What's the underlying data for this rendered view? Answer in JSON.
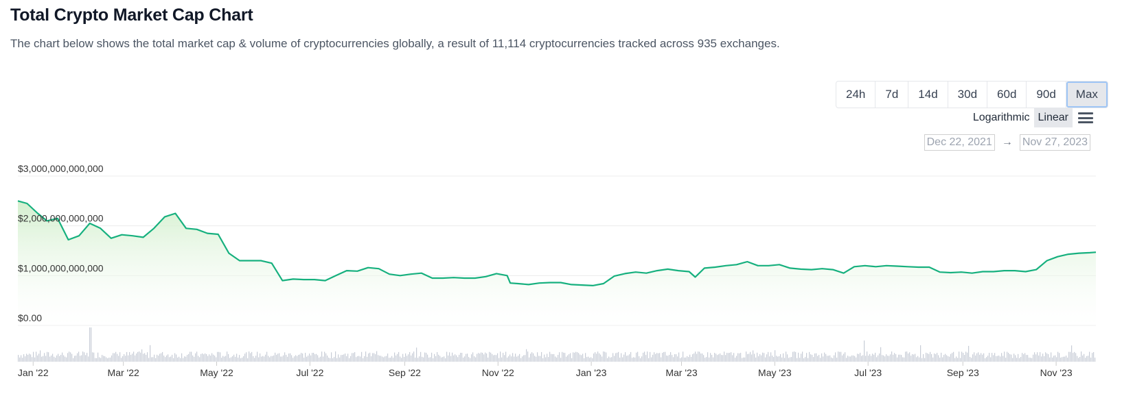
{
  "header": {
    "title": "Total Crypto Market Cap Chart",
    "subtitle": "The chart below shows the total market cap & volume of cryptocurrencies globally, a result of 11,114 cryptocurrencies tracked across 935 exchanges."
  },
  "controls": {
    "ranges": [
      "24h",
      "7d",
      "14d",
      "30d",
      "60d",
      "90d",
      "Max"
    ],
    "active_range": "Max",
    "scale_options": [
      "Logarithmic",
      "Linear"
    ],
    "active_scale": "Linear",
    "menu_icon": "hamburger-menu-icon",
    "date_from": "Dec 22, 2021",
    "date_arrow": "→",
    "date_to": "Nov 27, 2023"
  },
  "chart_data": {
    "type": "area",
    "title": "Total Crypto Market Cap Chart",
    "x_start": "2021-12-22",
    "x_end": "2023-11-27",
    "x_tick_labels": [
      "Jan '22",
      "Mar '22",
      "May '22",
      "Jul '22",
      "Sep '22",
      "Nov '22",
      "Jan '23",
      "Mar '23",
      "May '23",
      "Jul '23",
      "Sep '23",
      "Nov '23"
    ],
    "x_tick_dates": [
      "2022-01-01",
      "2022-03-01",
      "2022-05-01",
      "2022-07-01",
      "2022-09-01",
      "2022-11-01",
      "2023-01-01",
      "2023-03-01",
      "2023-05-01",
      "2023-07-01",
      "2023-09-01",
      "2023-11-01"
    ],
    "y_tick_labels": [
      "$0.00",
      "$1,000,000,000,000",
      "$2,000,000,000,000",
      "$3,000,000,000,000"
    ],
    "y_tick_values": [
      0,
      1000000000000,
      2000000000000,
      3000000000000
    ],
    "ylim": [
      0,
      3000000000000
    ],
    "grid": true,
    "line_color": "#16b07e",
    "fill_color": "#d7f2d7",
    "series": [
      {
        "name": "Market Cap",
        "points": [
          [
            "2021-12-22",
            2500000000000.0
          ],
          [
            "2021-12-28",
            2450000000000.0
          ],
          [
            "2022-01-04",
            2250000000000.0
          ],
          [
            "2022-01-10",
            2100000000000.0
          ],
          [
            "2022-01-17",
            2150000000000.0
          ],
          [
            "2022-01-24",
            1720000000000.0
          ],
          [
            "2022-01-31",
            1800000000000.0
          ],
          [
            "2022-02-07",
            2050000000000.0
          ],
          [
            "2022-02-14",
            1950000000000.0
          ],
          [
            "2022-02-21",
            1750000000000.0
          ],
          [
            "2022-02-28",
            1820000000000.0
          ],
          [
            "2022-03-07",
            1800000000000.0
          ],
          [
            "2022-03-14",
            1770000000000.0
          ],
          [
            "2022-03-21",
            1950000000000.0
          ],
          [
            "2022-03-28",
            2180000000000.0
          ],
          [
            "2022-04-04",
            2250000000000.0
          ],
          [
            "2022-04-11",
            1950000000000.0
          ],
          [
            "2022-04-18",
            1930000000000.0
          ],
          [
            "2022-04-25",
            1850000000000.0
          ],
          [
            "2022-05-02",
            1830000000000.0
          ],
          [
            "2022-05-09",
            1450000000000.0
          ],
          [
            "2022-05-16",
            1300000000000.0
          ],
          [
            "2022-05-23",
            1300000000000.0
          ],
          [
            "2022-05-30",
            1300000000000.0
          ],
          [
            "2022-06-06",
            1250000000000.0
          ],
          [
            "2022-06-13",
            900000000000.0
          ],
          [
            "2022-06-20",
            930000000000.0
          ],
          [
            "2022-06-27",
            920000000000.0
          ],
          [
            "2022-07-04",
            920000000000.0
          ],
          [
            "2022-07-11",
            900000000000.0
          ],
          [
            "2022-07-18",
            1000000000000.0
          ],
          [
            "2022-07-25",
            1100000000000.0
          ],
          [
            "2022-08-01",
            1090000000000.0
          ],
          [
            "2022-08-08",
            1160000000000.0
          ],
          [
            "2022-08-15",
            1140000000000.0
          ],
          [
            "2022-08-22",
            1030000000000.0
          ],
          [
            "2022-08-29",
            1000000000000.0
          ],
          [
            "2022-09-05",
            1030000000000.0
          ],
          [
            "2022-09-12",
            1050000000000.0
          ],
          [
            "2022-09-19",
            950000000000.0
          ],
          [
            "2022-09-26",
            950000000000.0
          ],
          [
            "2022-10-03",
            960000000000.0
          ],
          [
            "2022-10-10",
            950000000000.0
          ],
          [
            "2022-10-17",
            950000000000.0
          ],
          [
            "2022-10-24",
            980000000000.0
          ],
          [
            "2022-10-31",
            1040000000000.0
          ],
          [
            "2022-11-07",
            1000000000000.0
          ],
          [
            "2022-11-09",
            850000000000.0
          ],
          [
            "2022-11-14",
            840000000000.0
          ],
          [
            "2022-11-21",
            820000000000.0
          ],
          [
            "2022-11-28",
            850000000000.0
          ],
          [
            "2022-12-05",
            860000000000.0
          ],
          [
            "2022-12-12",
            860000000000.0
          ],
          [
            "2022-12-19",
            820000000000.0
          ],
          [
            "2022-12-26",
            810000000000.0
          ],
          [
            "2023-01-02",
            800000000000.0
          ],
          [
            "2023-01-09",
            840000000000.0
          ],
          [
            "2023-01-16",
            990000000000.0
          ],
          [
            "2023-01-23",
            1040000000000.0
          ],
          [
            "2023-01-30",
            1070000000000.0
          ],
          [
            "2023-02-06",
            1050000000000.0
          ],
          [
            "2023-02-13",
            1100000000000.0
          ],
          [
            "2023-02-20",
            1130000000000.0
          ],
          [
            "2023-02-27",
            1100000000000.0
          ],
          [
            "2023-03-06",
            1080000000000.0
          ],
          [
            "2023-03-10",
            970000000000.0
          ],
          [
            "2023-03-16",
            1150000000000.0
          ],
          [
            "2023-03-23",
            1170000000000.0
          ],
          [
            "2023-03-30",
            1200000000000.0
          ],
          [
            "2023-04-06",
            1220000000000.0
          ],
          [
            "2023-04-13",
            1280000000000.0
          ],
          [
            "2023-04-20",
            1200000000000.0
          ],
          [
            "2023-04-27",
            1200000000000.0
          ],
          [
            "2023-05-04",
            1220000000000.0
          ],
          [
            "2023-05-11",
            1150000000000.0
          ],
          [
            "2023-05-18",
            1130000000000.0
          ],
          [
            "2023-05-25",
            1120000000000.0
          ],
          [
            "2023-06-01",
            1140000000000.0
          ],
          [
            "2023-06-08",
            1120000000000.0
          ],
          [
            "2023-06-15",
            1050000000000.0
          ],
          [
            "2023-06-22",
            1180000000000.0
          ],
          [
            "2023-06-29",
            1200000000000.0
          ],
          [
            "2023-07-06",
            1180000000000.0
          ],
          [
            "2023-07-13",
            1200000000000.0
          ],
          [
            "2023-07-20",
            1190000000000.0
          ],
          [
            "2023-07-27",
            1180000000000.0
          ],
          [
            "2023-08-03",
            1170000000000.0
          ],
          [
            "2023-08-10",
            1170000000000.0
          ],
          [
            "2023-08-17",
            1070000000000.0
          ],
          [
            "2023-08-24",
            1060000000000.0
          ],
          [
            "2023-08-31",
            1070000000000.0
          ],
          [
            "2023-09-07",
            1050000000000.0
          ],
          [
            "2023-09-14",
            1080000000000.0
          ],
          [
            "2023-09-21",
            1080000000000.0
          ],
          [
            "2023-09-28",
            1100000000000.0
          ],
          [
            "2023-10-05",
            1100000000000.0
          ],
          [
            "2023-10-12",
            1080000000000.0
          ],
          [
            "2023-10-19",
            1120000000000.0
          ],
          [
            "2023-10-26",
            1300000000000.0
          ],
          [
            "2023-11-02",
            1380000000000.0
          ],
          [
            "2023-11-09",
            1430000000000.0
          ],
          [
            "2023-11-16",
            1450000000000.0
          ],
          [
            "2023-11-23",
            1460000000000.0
          ],
          [
            "2023-11-27",
            1470000000000.0
          ]
        ]
      }
    ]
  }
}
